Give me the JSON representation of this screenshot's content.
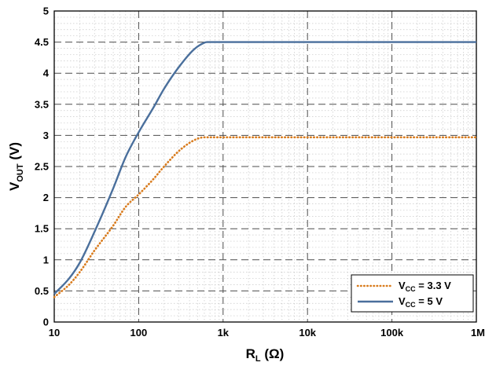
{
  "chart_data": {
    "type": "line",
    "xscale": "log",
    "xlim": [
      10,
      1000000
    ],
    "ylim": [
      0,
      5
    ],
    "x_ticks": [
      10,
      100,
      1000,
      10000,
      100000,
      1000000
    ],
    "x_tick_labels": [
      "10",
      "100",
      "1k",
      "10k",
      "100k",
      "1M"
    ],
    "y_ticks": [
      0,
      0.5,
      1,
      1.5,
      2,
      2.5,
      3,
      3.5,
      4,
      4.5,
      5
    ],
    "y_tick_labels": [
      "0",
      "0.5",
      "1",
      "1.5",
      "2",
      "2.5",
      "3",
      "3.5",
      "4",
      "4.5",
      "5"
    ],
    "xlabel": {
      "main": "R",
      "sub": "L",
      "rest": " (Ω)"
    },
    "ylabel": {
      "main": "V",
      "sub": "OUT",
      "rest": " (V)"
    },
    "grid": true,
    "legend_position": "bottom-right",
    "series": [
      {
        "name": {
          "main": "V",
          "sub": "CC",
          "rest": " = 3.3 V"
        },
        "color": "#d97c1e",
        "style": "dotted",
        "x": [
          10,
          15,
          20,
          30,
          50,
          70,
          100,
          150,
          200,
          300,
          450,
          600,
          1000,
          10000,
          100000,
          1000000
        ],
        "y": [
          0.4,
          0.6,
          0.8,
          1.15,
          1.55,
          1.85,
          2.05,
          2.3,
          2.5,
          2.75,
          2.92,
          2.97,
          2.97,
          2.97,
          2.97,
          2.97
        ]
      },
      {
        "name": {
          "main": "V",
          "sub": "CC",
          "rest": " = 5 V"
        },
        "color": "#4a6f9c",
        "style": "solid",
        "x": [
          10,
          15,
          20,
          30,
          50,
          70,
          100,
          150,
          200,
          300,
          450,
          600,
          650,
          1000,
          10000,
          100000,
          1000000
        ],
        "y": [
          0.45,
          0.7,
          0.95,
          1.45,
          2.15,
          2.65,
          3.05,
          3.45,
          3.75,
          4.1,
          4.38,
          4.49,
          4.5,
          4.5,
          4.5,
          4.5,
          4.5
        ]
      }
    ]
  }
}
